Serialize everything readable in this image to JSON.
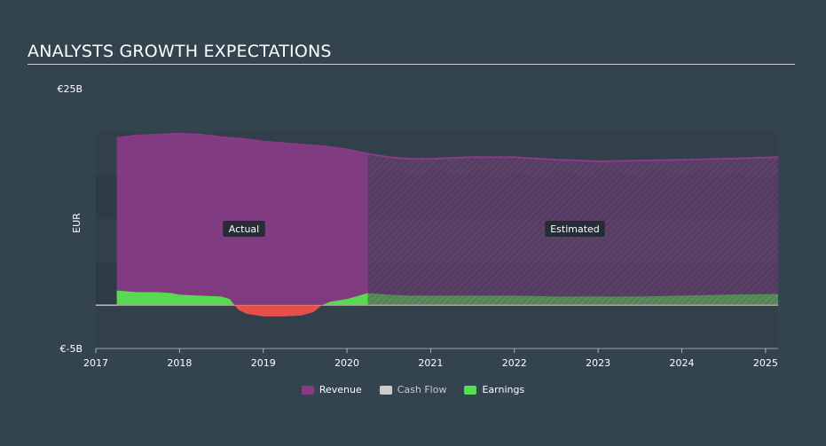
{
  "header": {
    "title": "ANALYSTS GROWTH EXPECTATIONS"
  },
  "colors": {
    "background": "#34444f",
    "revenue": "#8c3a88",
    "cash_flow": "#cccccc",
    "earnings": "#56e04f",
    "negative_earnings": "#f0504c"
  },
  "chart_data": {
    "type": "area",
    "title": "ANALYSTS GROWTH EXPECTATIONS",
    "ylabel": "EUR",
    "y_tick_labels": [
      "€25B",
      "€-5B"
    ],
    "ylim": [
      -5,
      25
    ],
    "xlim": [
      2017,
      2025.15
    ],
    "x_tick_labels": [
      "2017",
      "2018",
      "2019",
      "2020",
      "2021",
      "2022",
      "2023",
      "2024",
      "2025"
    ],
    "grid": true,
    "actual_estimated_boundary": 2020.25,
    "region_labels": {
      "actual": "Actual",
      "estimated": "Estimated"
    },
    "legend": {
      "position": "bottom-center",
      "entries": [
        {
          "name": "Revenue",
          "color": "#8c3a88"
        },
        {
          "name": "Cash Flow",
          "color": "#cccccc"
        },
        {
          "name": "Earnings",
          "color": "#56e04f"
        }
      ]
    },
    "series": [
      {
        "name": "Revenue",
        "x": [
          2017.25,
          2017.5,
          2017.75,
          2018.0,
          2018.25,
          2018.5,
          2018.75,
          2019.0,
          2019.25,
          2019.5,
          2019.75,
          2020.0,
          2020.25,
          2020.5,
          2020.75,
          2021.0,
          2021.5,
          2022.0,
          2022.5,
          2023.0,
          2023.5,
          2024.0,
          2024.5,
          2025.15
        ],
        "values": [
          19.3,
          19.6,
          19.7,
          19.8,
          19.7,
          19.4,
          19.2,
          18.9,
          18.7,
          18.5,
          18.3,
          18.0,
          17.5,
          17.1,
          16.9,
          16.9,
          17.1,
          17.1,
          16.8,
          16.6,
          16.7,
          16.8,
          16.9,
          17.1
        ]
      },
      {
        "name": "Earnings",
        "x": [
          2017.25,
          2017.5,
          2017.75,
          2017.9,
          2018.0,
          2018.25,
          2018.5,
          2018.6,
          2018.7,
          2018.8,
          2019.0,
          2019.25,
          2019.45,
          2019.6,
          2019.7,
          2019.8,
          2020.0,
          2020.25,
          2020.5,
          2020.75,
          2021.0,
          2021.5,
          2022.0,
          2022.5,
          2023.0,
          2023.5,
          2024.0,
          2024.5,
          2025.15
        ],
        "values": [
          1.7,
          1.5,
          1.5,
          1.4,
          1.2,
          1.1,
          1.0,
          0.7,
          -0.5,
          -1.0,
          -1.3,
          -1.3,
          -1.2,
          -0.8,
          0.0,
          0.4,
          0.7,
          1.4,
          1.2,
          1.1,
          1.1,
          1.1,
          1.1,
          1.0,
          1.0,
          1.0,
          1.1,
          1.2,
          1.3
        ]
      }
    ]
  }
}
